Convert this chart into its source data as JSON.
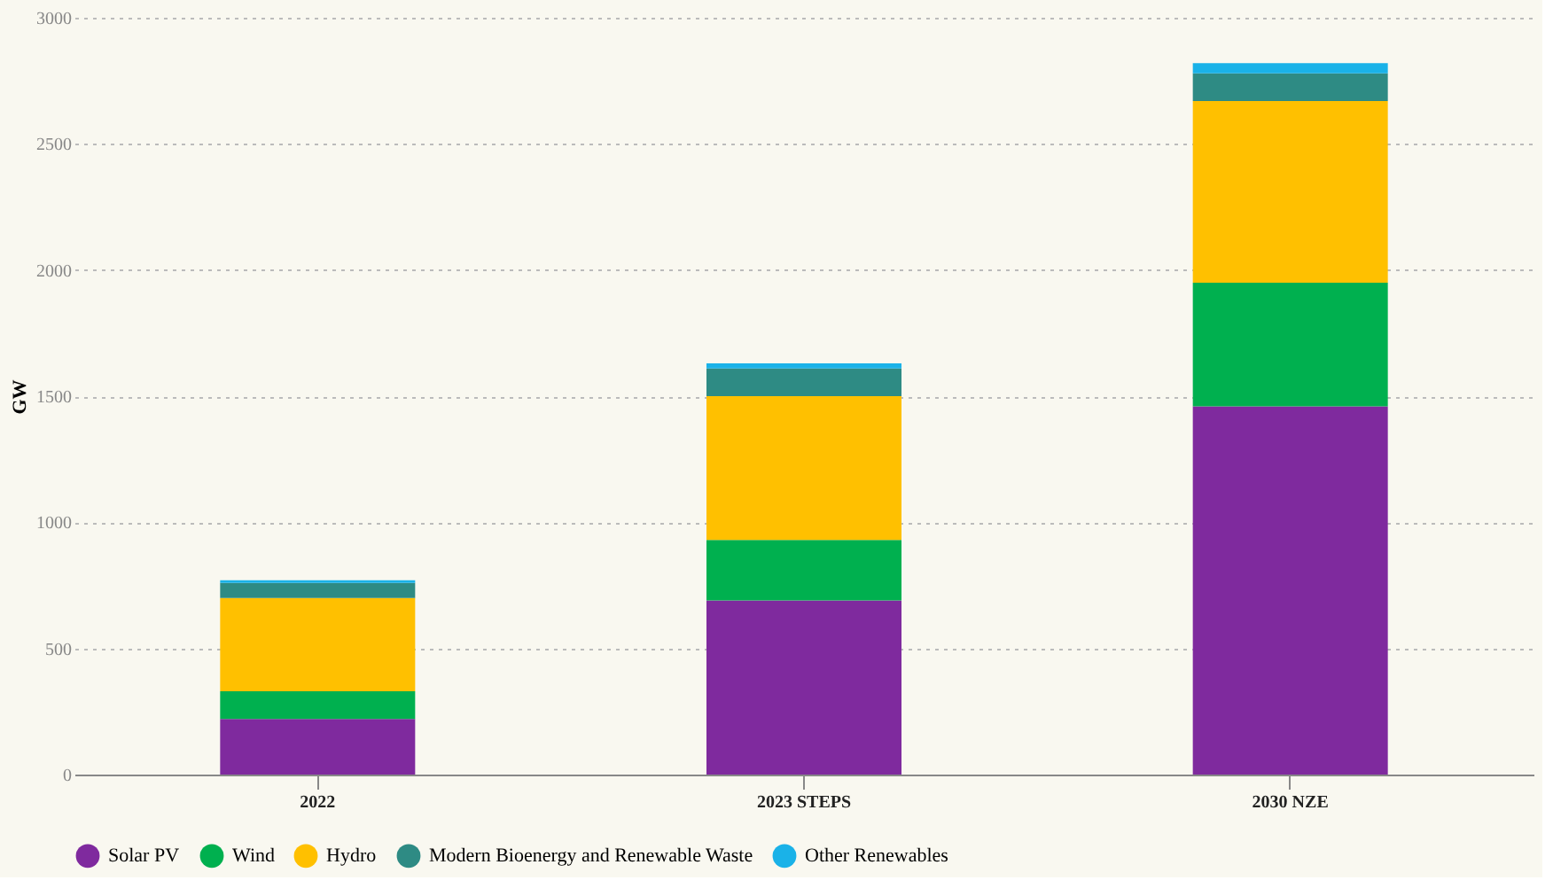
{
  "chart_data": {
    "type": "bar",
    "stacked": true,
    "ylabel": "GW",
    "categories": [
      "2022",
      "2023 STEPS",
      "2030 NZE"
    ],
    "series": [
      {
        "name": "Solar PV",
        "color": "#7f2a9e",
        "values": [
          220,
          690,
          1460
        ]
      },
      {
        "name": "Wind",
        "color": "#00b04f",
        "values": [
          110,
          240,
          490
        ]
      },
      {
        "name": "Hydro",
        "color": "#ffc000",
        "values": [
          370,
          570,
          720
        ]
      },
      {
        "name": "Modern Bioenergy and Renewable Waste",
        "color": "#2e8b84",
        "values": [
          60,
          110,
          110
        ]
      },
      {
        "name": "Other Renewables",
        "color": "#1ab2e8",
        "values": [
          10,
          20,
          40
        ]
      }
    ],
    "ylim": [
      0,
      3000
    ],
    "yticks": [
      0,
      500,
      1000,
      1500,
      2000,
      2500,
      3000
    ],
    "grid": "y",
    "legend": "bottom"
  }
}
